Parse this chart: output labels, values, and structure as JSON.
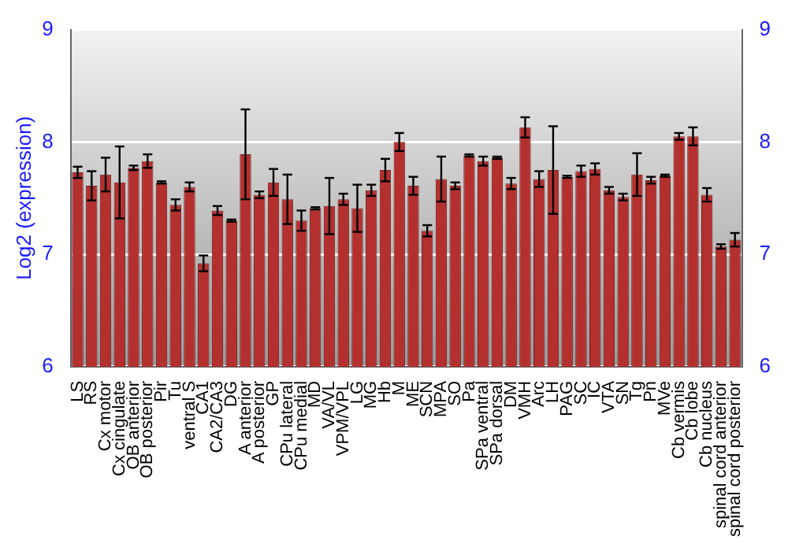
{
  "chart_data": {
    "type": "bar",
    "ylabel": "Log2 (expression)",
    "categories": [
      "LS",
      "RS",
      "Cx motor",
      "Cx cingulate",
      "OB anterior",
      "OB posterior",
      "Pir",
      "Tu",
      "ventral S",
      "CA1",
      "CA2/CA3",
      "DG",
      "A anterior",
      "A posterior",
      "GP",
      "CPu lateral",
      "CPu medial",
      "MD",
      "VA/VL",
      "VPM/VPL",
      "LG",
      "MG",
      "Hb",
      "M",
      "ME",
      "SCN",
      "MPA",
      "SO",
      "Pa",
      "SPa ventral",
      "SPa dorsal",
      "DM",
      "VMH",
      "Arc",
      "LH",
      "PAG",
      "SC",
      "IC",
      "VTA",
      "SN",
      "Tg",
      "Pn",
      "MVe",
      "Cb vermis",
      "Cb lobe",
      "Cb nucleus",
      "spinal cord anterior",
      "spinal cord posterior"
    ],
    "values": [
      7.73,
      7.61,
      7.71,
      7.64,
      7.77,
      7.83,
      7.64,
      7.44,
      7.6,
      6.92,
      7.39,
      7.3,
      7.89,
      7.53,
      7.64,
      7.49,
      7.3,
      7.41,
      7.43,
      7.49,
      7.41,
      7.57,
      7.75,
      8.0,
      7.61,
      7.21,
      7.67,
      7.61,
      7.88,
      7.83,
      7.86,
      7.63,
      8.13,
      7.67,
      7.75,
      7.69,
      7.74,
      7.76,
      7.57,
      7.51,
      7.71,
      7.66,
      7.7,
      8.05,
      8.05,
      7.53,
      7.07,
      7.13
    ],
    "errors": [
      0.05,
      0.13,
      0.15,
      0.32,
      0.02,
      0.06,
      0.01,
      0.05,
      0.04,
      0.07,
      0.04,
      0.01,
      0.4,
      0.03,
      0.12,
      0.22,
      0.09,
      0.01,
      0.25,
      0.05,
      0.21,
      0.05,
      0.1,
      0.08,
      0.08,
      0.05,
      0.2,
      0.03,
      0.01,
      0.04,
      0.01,
      0.05,
      0.09,
      0.07,
      0.39,
      0.01,
      0.05,
      0.05,
      0.03,
      0.03,
      0.19,
      0.03,
      0.01,
      0.03,
      0.08,
      0.06,
      0.02,
      0.06
    ],
    "color": "#b3302e",
    "ylim": [
      6,
      9
    ],
    "yticks": [
      6,
      7,
      8,
      9
    ],
    "y2lim": [
      6,
      9
    ],
    "y2ticks": [
      6,
      7,
      8,
      9
    ],
    "grid": "y"
  }
}
